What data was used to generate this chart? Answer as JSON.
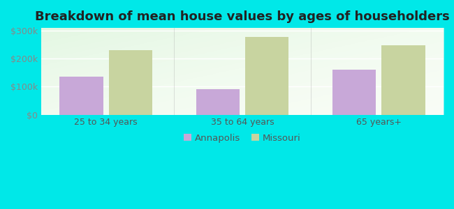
{
  "title": "Breakdown of mean house values by ages of householders",
  "categories": [
    "25 to 34 years",
    "35 to 64 years",
    "65 years+"
  ],
  "annapolis_values": [
    135000,
    90000,
    162000
  ],
  "missouri_values": [
    230000,
    278000,
    247000
  ],
  "annapolis_color": "#c8a8d8",
  "missouri_color": "#c8d4a0",
  "bar_width": 0.32,
  "ylim": [
    0,
    310000
  ],
  "yticks": [
    0,
    100000,
    200000,
    300000
  ],
  "ytick_labels": [
    "$0",
    "$100k",
    "$200k",
    "$300k"
  ],
  "legend_labels": [
    "Annapolis",
    "Missouri"
  ],
  "title_fontsize": 13,
  "tick_fontsize": 9,
  "legend_fontsize": 9.5,
  "outer_bg": "#00e8e8",
  "divider_color": "#aaaaaa",
  "grid_color": "#dddddd",
  "tick_color": "#888888",
  "xlabel_color": "#555555"
}
